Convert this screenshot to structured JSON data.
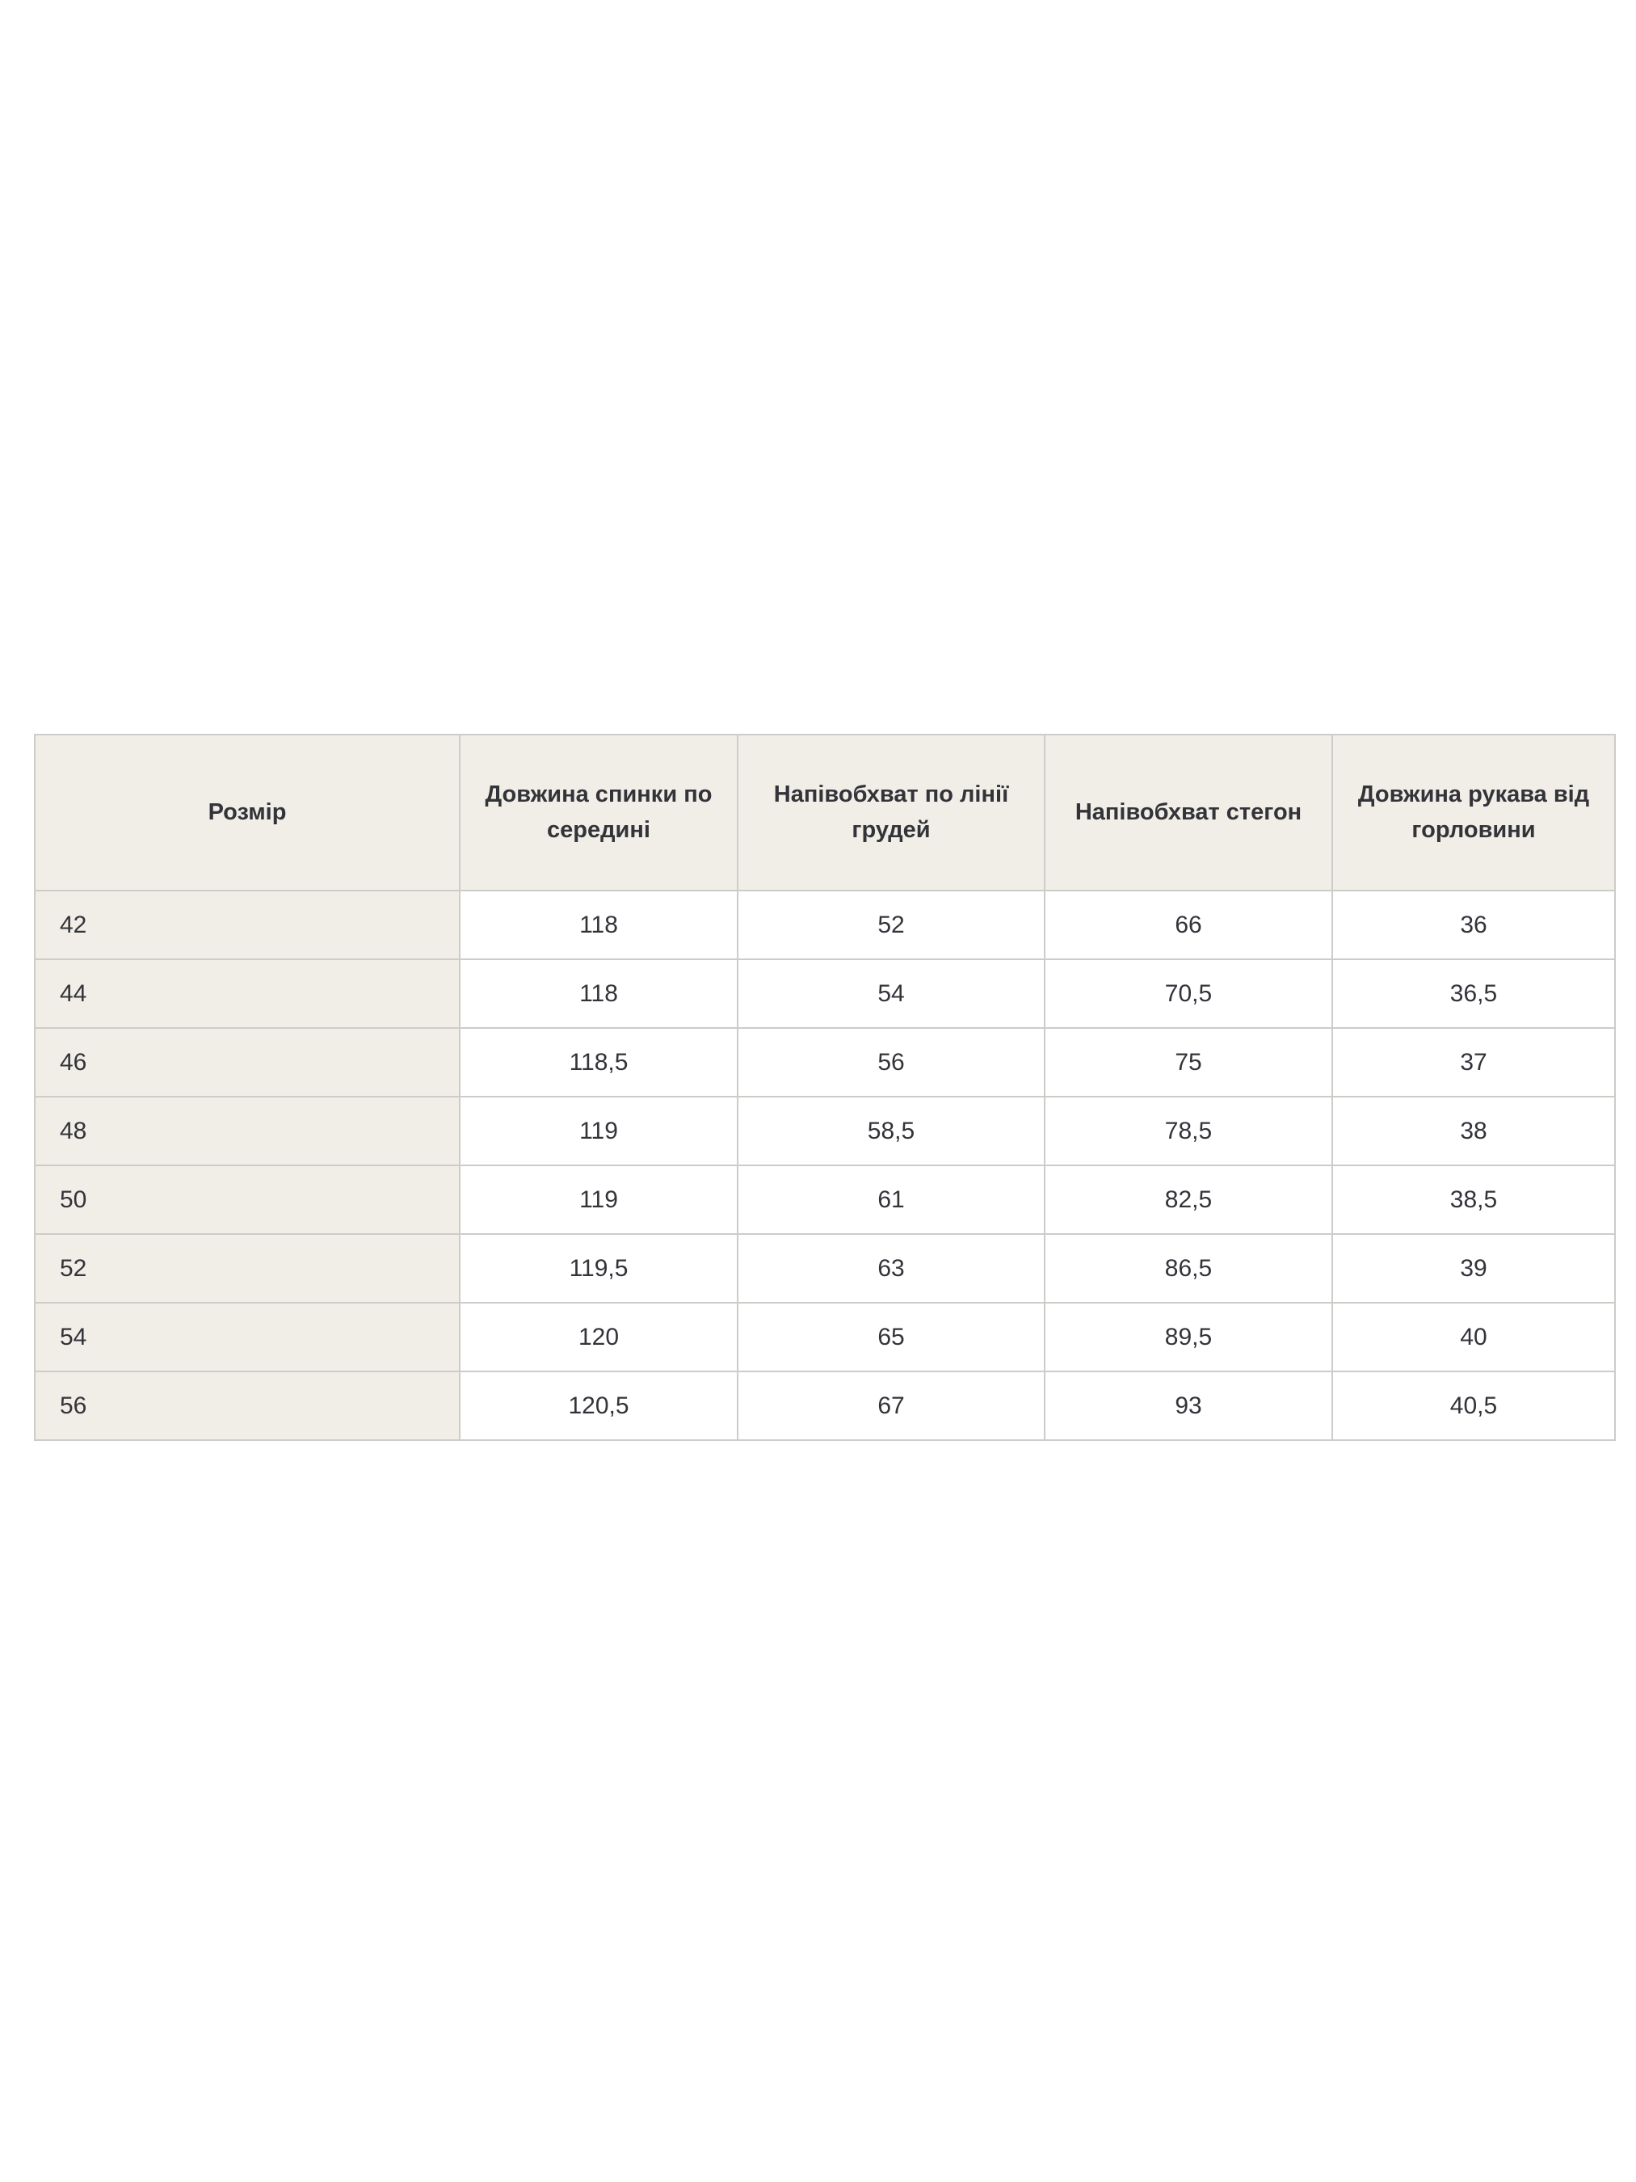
{
  "page": {
    "background_color": "#ffffff"
  },
  "size_chart": {
    "style": {
      "header_background": "#f0eee6",
      "row_label_background": "#f0eee6",
      "data_cell_background": "#ffffff",
      "border_color": "#ccccc9",
      "text_color": "#33333a"
    },
    "columns": [
      "Розмір",
      "Довжина спинки по середині",
      "Напівобхват по лінії грудей",
      "Напівобхват стегон",
      "Довжина рукава від горловини"
    ],
    "rows": [
      {
        "size": "42",
        "back_length": "118",
        "chest_half": "52",
        "hips_half": "66",
        "sleeve_length": "36"
      },
      {
        "size": "44",
        "back_length": "118",
        "chest_half": "54",
        "hips_half": "70,5",
        "sleeve_length": "36,5"
      },
      {
        "size": "46",
        "back_length": "118,5",
        "chest_half": "56",
        "hips_half": "75",
        "sleeve_length": "37"
      },
      {
        "size": "48",
        "back_length": "119",
        "chest_half": "58,5",
        "hips_half": "78,5",
        "sleeve_length": "38"
      },
      {
        "size": "50",
        "back_length": "119",
        "chest_half": "61",
        "hips_half": "82,5",
        "sleeve_length": "38,5"
      },
      {
        "size": "52",
        "back_length": "119,5",
        "chest_half": "63",
        "hips_half": "86,5",
        "sleeve_length": "39"
      },
      {
        "size": "54",
        "back_length": "120",
        "chest_half": "65",
        "hips_half": "89,5",
        "sleeve_length": "40"
      },
      {
        "size": "56",
        "back_length": "120,5",
        "chest_half": "67",
        "hips_half": "93",
        "sleeve_length": "40,5"
      }
    ]
  }
}
